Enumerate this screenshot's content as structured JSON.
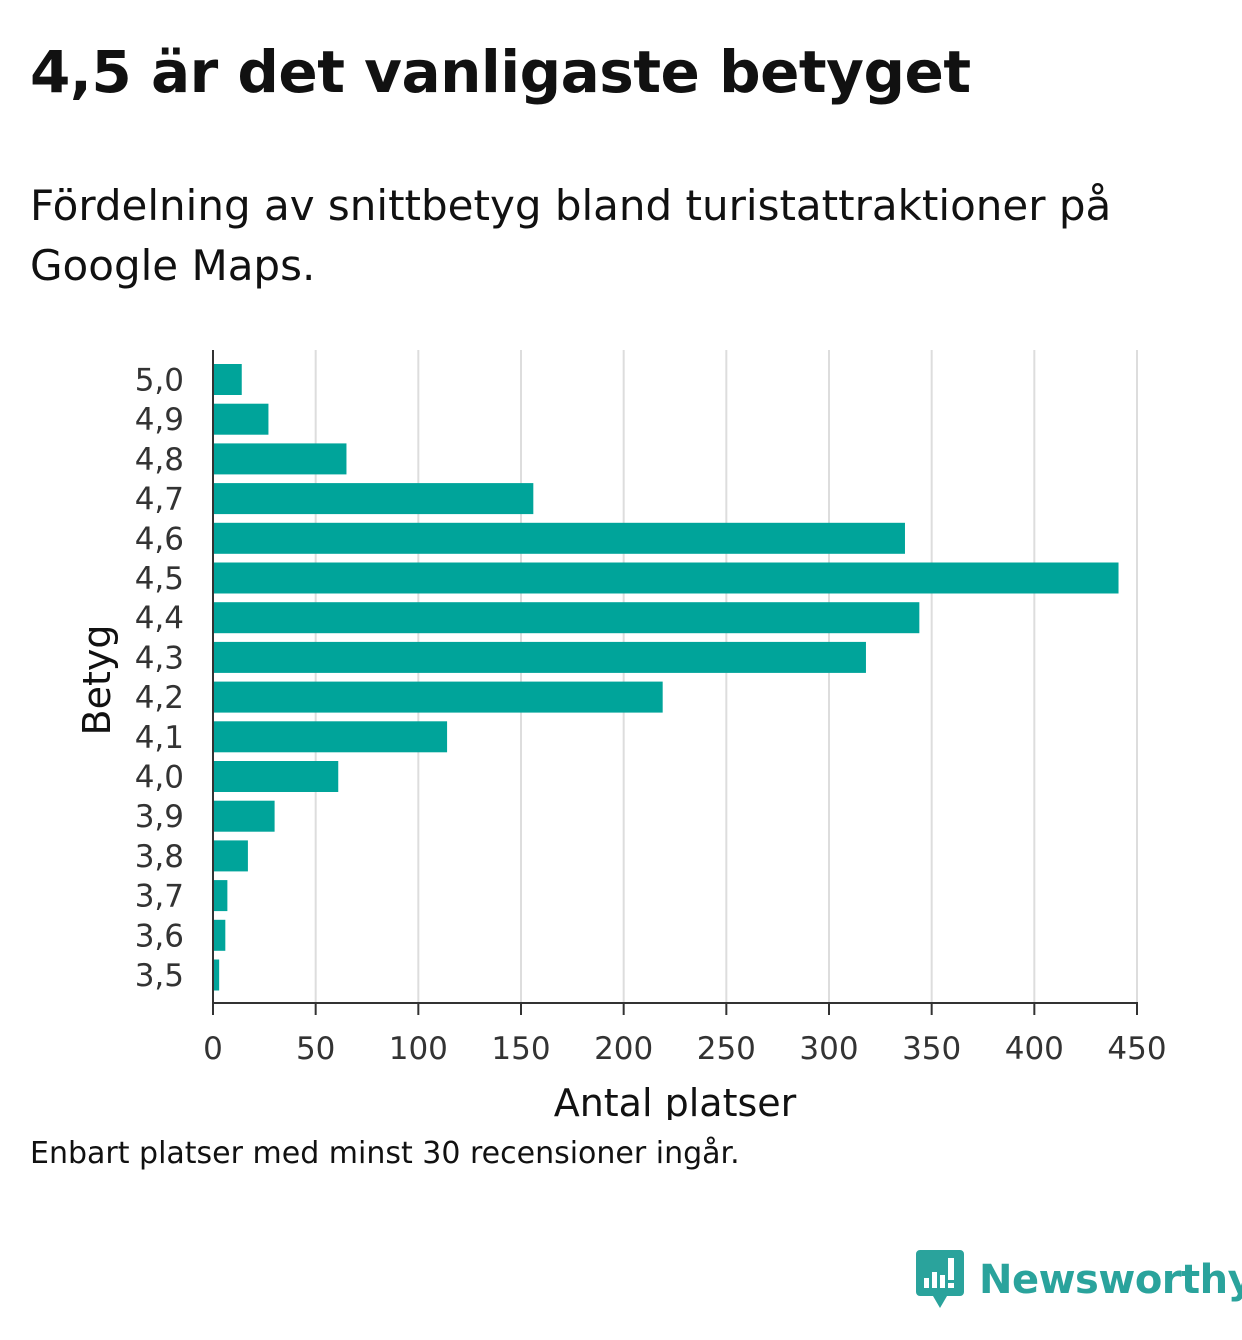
{
  "header": {
    "title": "4,5 är det vanligaste betyget",
    "subtitle": "Fördelning av snittbetyg bland turistattraktioner på Google Maps."
  },
  "chart_data": {
    "type": "bar",
    "orientation": "horizontal",
    "categories": [
      "5,0",
      "4,9",
      "4,8",
      "4,7",
      "4,6",
      "4,5",
      "4,4",
      "4,3",
      "4,2",
      "4,1",
      "4,0",
      "3,9",
      "3,8",
      "3,7",
      "3,6",
      "3,5"
    ],
    "values": [
      14,
      27,
      65,
      156,
      337,
      441,
      344,
      318,
      219,
      114,
      61,
      30,
      17,
      7,
      6,
      3
    ],
    "xlabel": "Antal platser",
    "ylabel": "Betyg",
    "xlim": [
      0,
      450
    ],
    "xticks": [
      0,
      50,
      100,
      150,
      200,
      250,
      300,
      350,
      400,
      450
    ],
    "grid": "vertical",
    "bar_color": "#00a49a"
  },
  "footnote": "Enbart platser med minst 30 recensioner ingår.",
  "branding": {
    "name": "Newsworthy",
    "logo_icon": "newsworthy-logo-icon",
    "color": "#2aa39c"
  }
}
